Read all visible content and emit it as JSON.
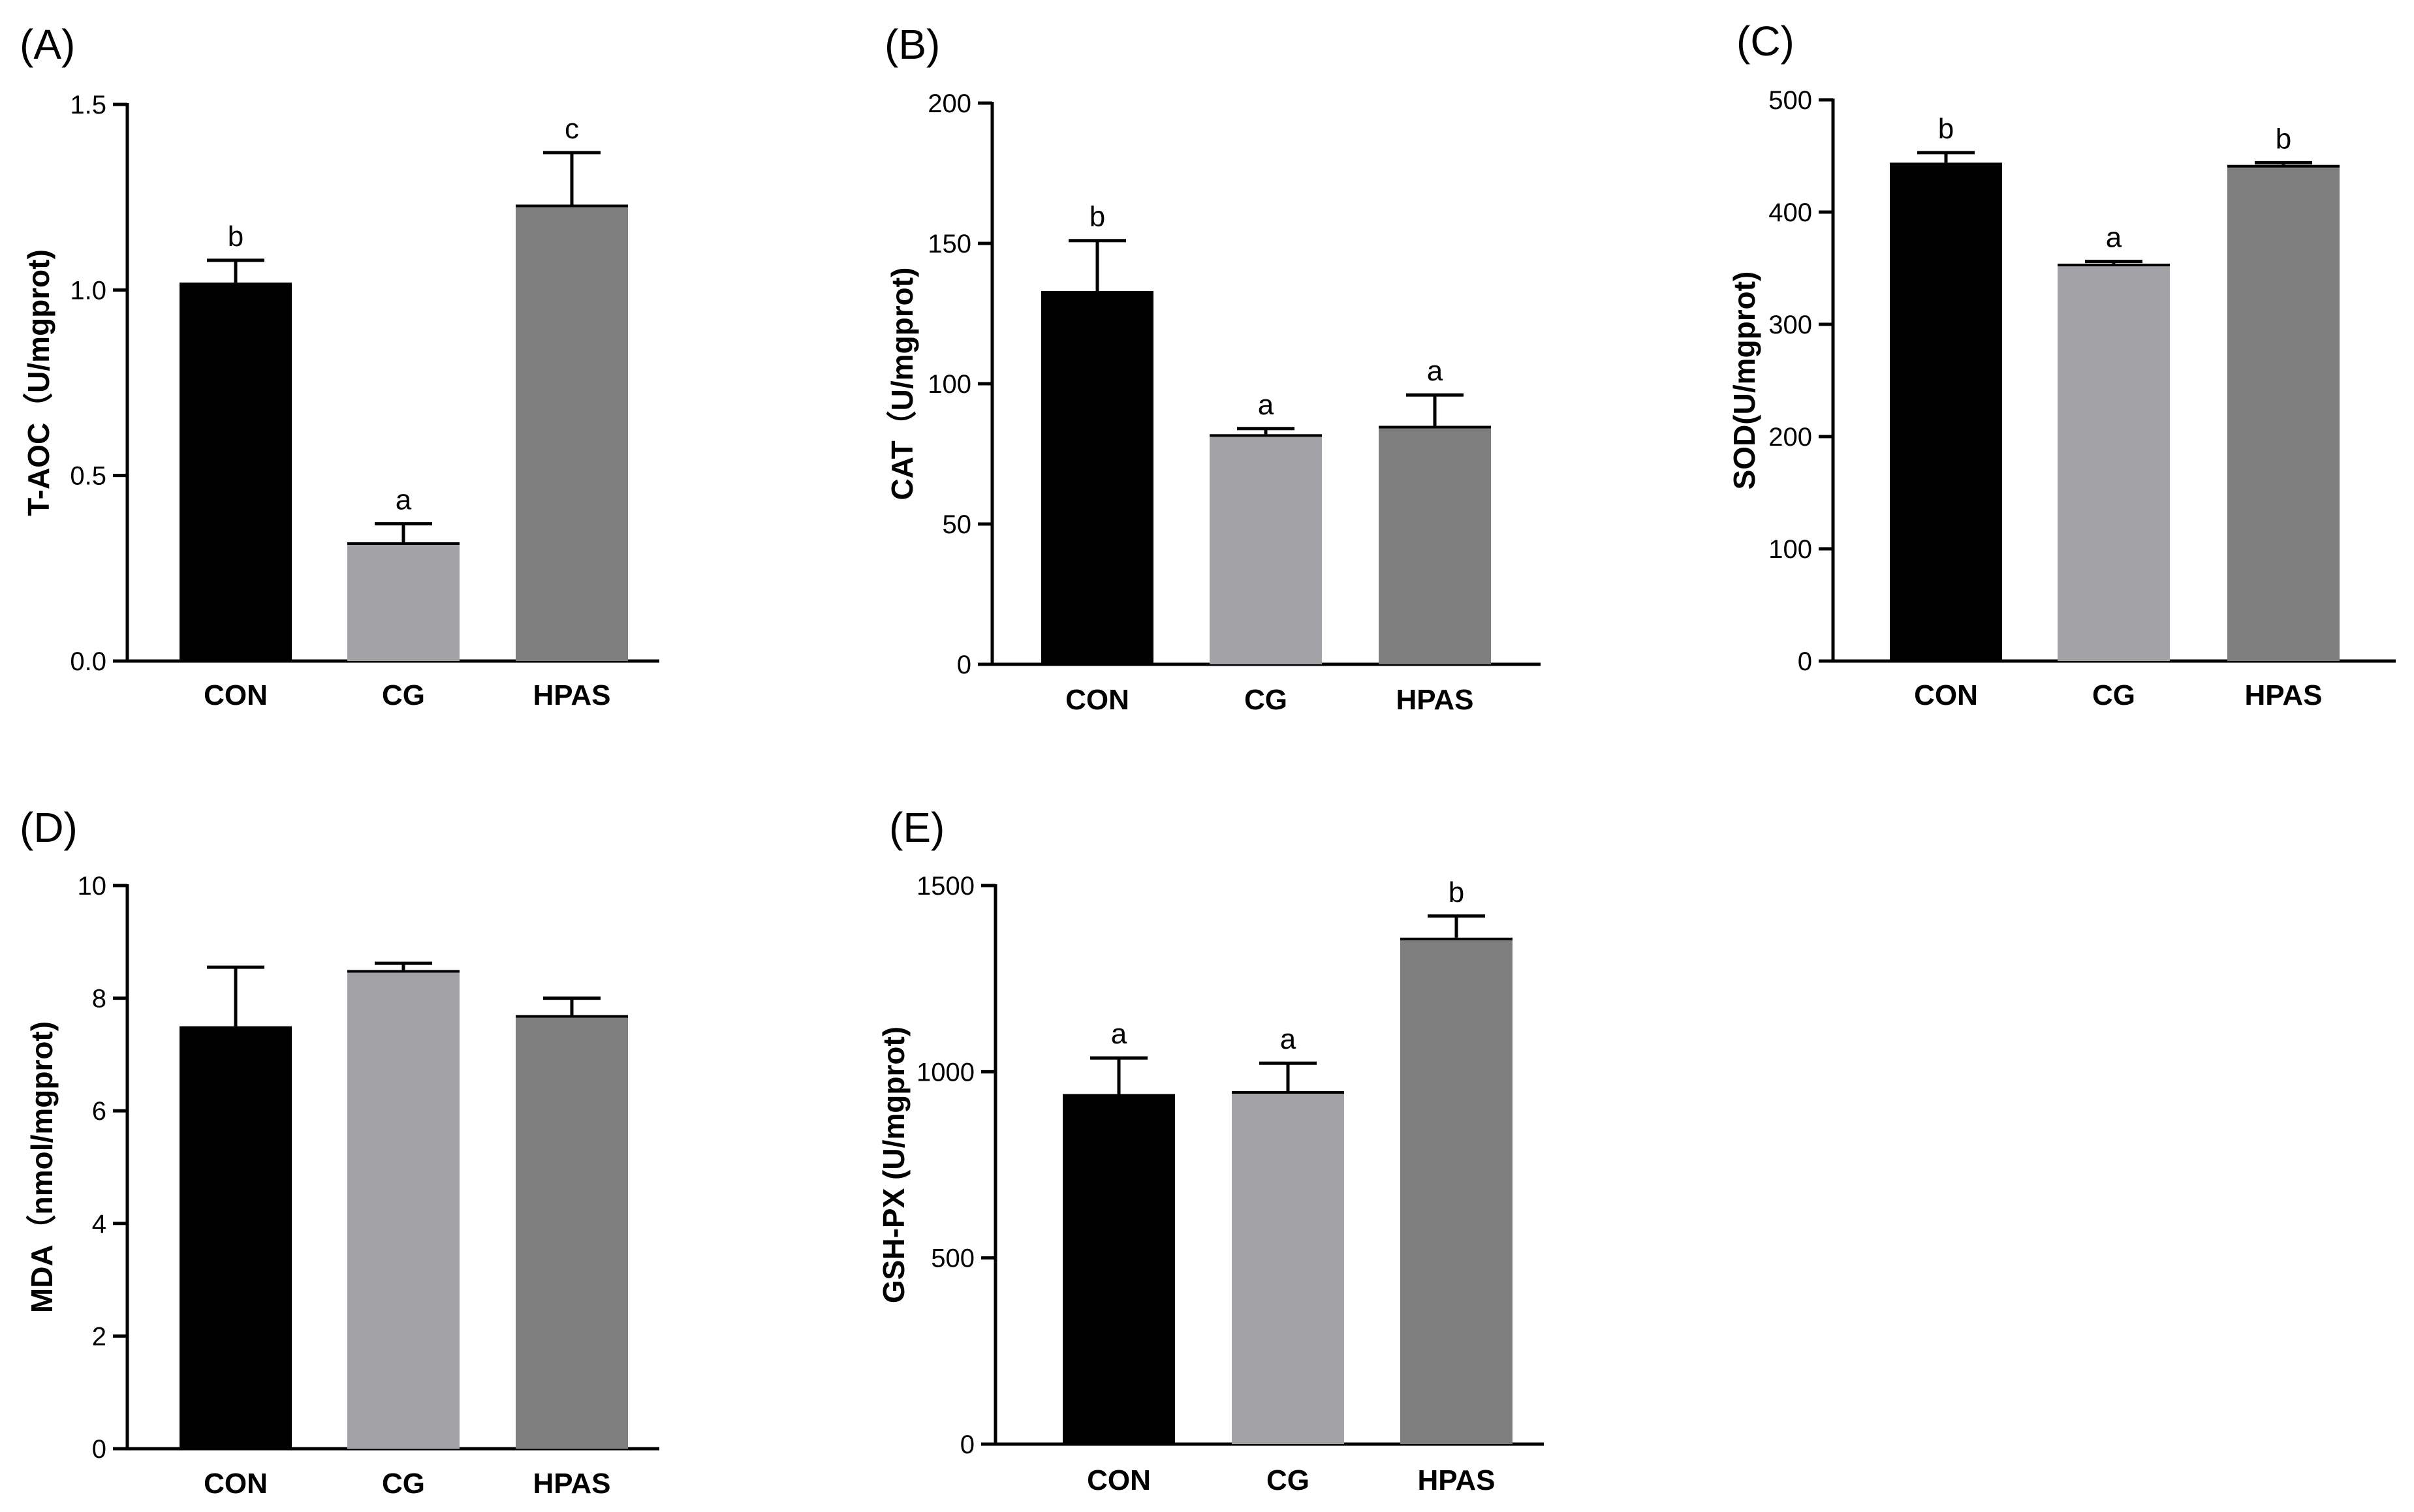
{
  "figure": {
    "colors": {
      "CON": "#000000",
      "CG": "#a3a3a7",
      "HPAS": "#7e7e7e",
      "axis": "#000000"
    },
    "panels": [
      {
        "id": "A",
        "panel_label": "(A)",
        "chart_data": {
          "type": "bar",
          "categories": [
            "CON",
            "CG",
            "HPAS"
          ],
          "values": [
            1.02,
            0.32,
            1.23
          ],
          "errors": [
            0.06,
            0.05,
            0.14
          ],
          "significance": [
            "b",
            "a",
            "c"
          ],
          "ylabel": "T-AOC（U/mgprot)",
          "ylim": [
            0,
            1.5
          ],
          "yticks": [
            0,
            0.5,
            1.0,
            1.5
          ],
          "ytick_labels": [
            "0.0",
            "0.5",
            "1.0",
            "1.5"
          ]
        }
      },
      {
        "id": "B",
        "panel_label": "(B)",
        "chart_data": {
          "type": "bar",
          "categories": [
            "CON",
            "CG",
            "HPAS"
          ],
          "values": [
            133,
            82,
            85
          ],
          "errors": [
            18,
            2,
            11
          ],
          "significance": [
            "b",
            "a",
            "a"
          ],
          "ylabel": "CAT（U/mgprot)",
          "ylim": [
            0,
            200
          ],
          "yticks": [
            0,
            50,
            100,
            150,
            200
          ],
          "ytick_labels": [
            "0",
            "50",
            "100",
            "150",
            "200"
          ]
        }
      },
      {
        "id": "C",
        "panel_label": "(C)",
        "chart_data": {
          "type": "bar",
          "categories": [
            "CON",
            "CG",
            "HPAS"
          ],
          "values": [
            444,
            354,
            442
          ],
          "errors": [
            9,
            2,
            2
          ],
          "significance": [
            "b",
            "a",
            "b"
          ],
          "ylabel": "SOD(U/mgprot)",
          "ylim": [
            0,
            500
          ],
          "yticks": [
            0,
            100,
            200,
            300,
            400,
            500
          ],
          "ytick_labels": [
            "0",
            "100",
            "200",
            "300",
            "400",
            "500"
          ]
        }
      },
      {
        "id": "D",
        "panel_label": "(D)",
        "chart_data": {
          "type": "bar",
          "categories": [
            "CON",
            "CG",
            "HPAS"
          ],
          "values": [
            7.5,
            8.5,
            7.7
          ],
          "errors": [
            1.05,
            0.12,
            0.3
          ],
          "significance": [],
          "ylabel": "MDA（nmol/mgprot)",
          "ylim": [
            0,
            10
          ],
          "yticks": [
            0,
            2,
            4,
            6,
            8,
            10
          ],
          "ytick_labels": [
            "0",
            "2",
            "4",
            "6",
            "8",
            "10"
          ]
        }
      },
      {
        "id": "E",
        "panel_label": "(E)",
        "chart_data": {
          "type": "bar",
          "categories": [
            "CON",
            "CG",
            "HPAS"
          ],
          "values": [
            940,
            948,
            1360
          ],
          "errors": [
            97,
            75,
            58
          ],
          "significance": [
            "a",
            "a",
            "b"
          ],
          "ylabel": "GSH-PX (U/mgprot)",
          "ylim": [
            0,
            1500
          ],
          "yticks": [
            0,
            500,
            1000,
            1500
          ],
          "ytick_labels": [
            "0",
            "500",
            "1000",
            "1500"
          ]
        }
      }
    ]
  }
}
